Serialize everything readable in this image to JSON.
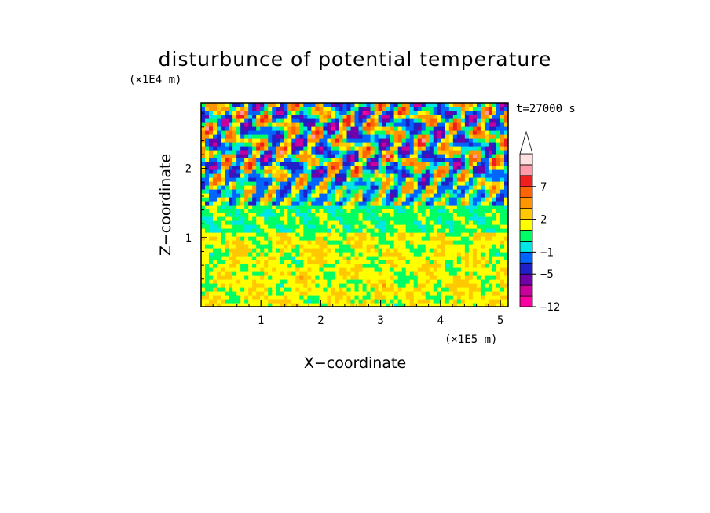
{
  "chart_data": {
    "type": "heatmap",
    "title": "disturbunce of potential temperature",
    "xlabel": "X−coordinate",
    "ylabel": "Z−coordinate",
    "x_unit": "(×1E5 m)",
    "y_unit": "(×1E4 m)",
    "time_label": "t=27000 s",
    "xlim": [
      0,
      5.13
    ],
    "ylim": [
      0,
      2.95
    ],
    "x_ticks": [
      1,
      2,
      3,
      4,
      5
    ],
    "x_tick_labels": [
      "1",
      "2",
      "3",
      "4",
      "5"
    ],
    "y_ticks": [
      1,
      2
    ],
    "y_tick_labels": [
      "1",
      "2"
    ],
    "colorbar": {
      "levels": [
        -12,
        -9,
        -7,
        -5,
        -3,
        -1,
        0,
        1,
        2,
        3,
        5,
        7,
        9,
        12
      ],
      "labels": [
        "−12",
        "−5",
        "−1",
        "2",
        "7"
      ],
      "label_values": [
        -12,
        -5,
        -1,
        2,
        7
      ],
      "colors": [
        "#ff00a0",
        "#c8009c",
        "#7000a8",
        "#2020c8",
        "#0064ff",
        "#00e6e6",
        "#00ff64",
        "#ffff00",
        "#ffc800",
        "#ff9600",
        "#ff6400",
        "#f01e1e",
        "#ff9aa8",
        "#ffe0e0"
      ],
      "extend": "max"
    },
    "field_description": [
      {
        "z_range": [
          0,
          1.05
        ],
        "mean": 1.5
      },
      {
        "z_range": [
          1.05,
          1.45
        ],
        "mean": 0.5
      },
      {
        "z_range": [
          1.45,
          2.95
        ],
        "mean": 0
      }
    ]
  }
}
